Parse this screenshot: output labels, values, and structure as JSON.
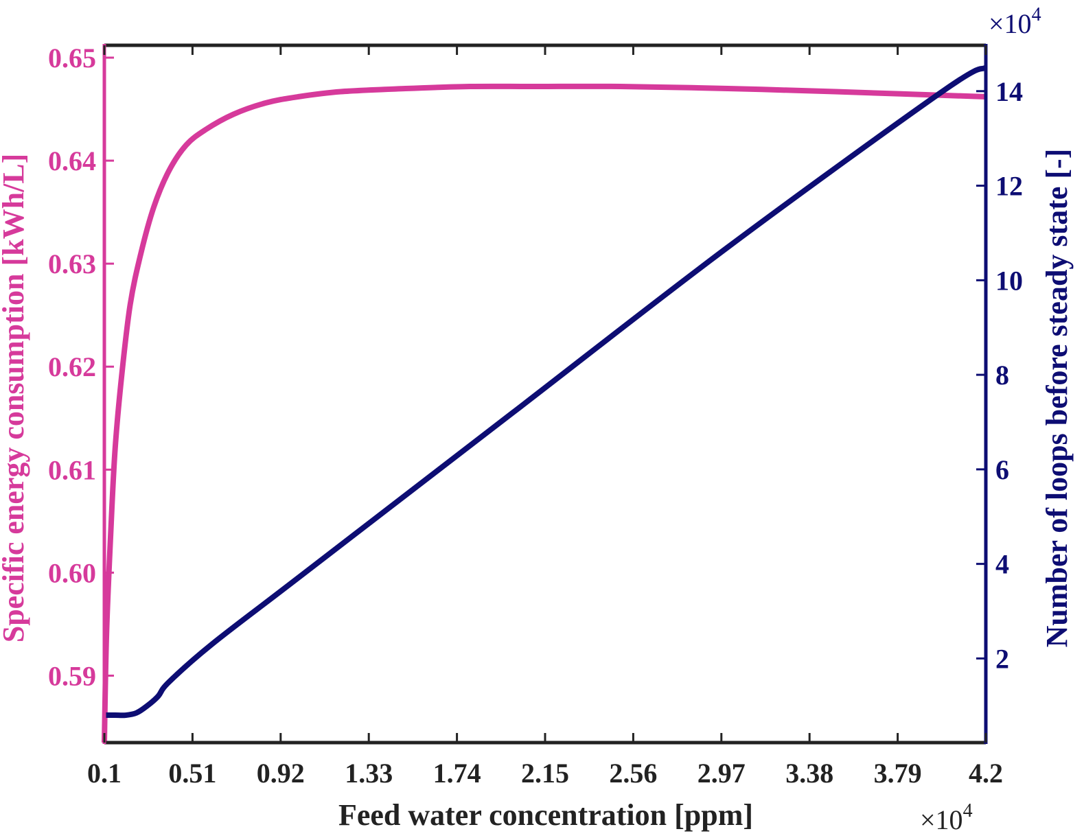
{
  "chart_data": {
    "type": "line",
    "xlabel": "Feed water concentration [ppm]",
    "x_multiplier": "×10",
    "x_exponent": "4",
    "xlim": [
      0.1,
      4.2
    ],
    "xticks": [
      "0.1",
      "0.51",
      "0.92",
      "1.33",
      "1.74",
      "2.15",
      "2.56",
      "2.97",
      "3.38",
      "3.79",
      "4.2"
    ],
    "y_left": {
      "label": "Specific energy consumption [kWh/L]",
      "lim": [
        0.5835,
        0.6512
      ],
      "ticks": [
        "0.59",
        "0.60",
        "0.61",
        "0.62",
        "0.63",
        "0.64",
        "0.65"
      ],
      "color": "#d63a9b"
    },
    "y_right": {
      "label": "Number of loops before steady state [-]",
      "multiplier": "×10",
      "exponent": "4",
      "lim": [
        0.22,
        14.97
      ],
      "ticks": [
        "2",
        "4",
        "6",
        "8",
        "10",
        "12",
        "14"
      ],
      "color": "#0d0d73"
    },
    "series": [
      {
        "axis": "left",
        "color": "#d63a9b",
        "x": [
          0.1,
          0.11,
          0.13,
          0.15,
          0.18,
          0.22,
          0.27,
          0.33,
          0.4,
          0.48,
          0.57,
          0.7,
          0.85,
          1.0,
          1.2,
          1.5,
          1.8,
          2.1,
          2.5,
          3.0,
          3.5,
          4.2
        ],
        "y": [
          0.5835,
          0.594,
          0.604,
          0.612,
          0.619,
          0.626,
          0.631,
          0.6355,
          0.639,
          0.6415,
          0.643,
          0.6445,
          0.6456,
          0.6462,
          0.6467,
          0.647,
          0.6472,
          0.6472,
          0.6472,
          0.647,
          0.6467,
          0.6462
        ]
      },
      {
        "axis": "right",
        "color": "#0d0d73",
        "x": [
          0.1,
          0.15,
          0.2,
          0.25,
          0.3,
          0.35,
          0.4,
          0.6,
          1.0,
          2.0,
          3.0,
          4.0,
          4.2
        ],
        "y": [
          0.8,
          0.8,
          0.8,
          0.85,
          1.0,
          1.2,
          1.5,
          2.3,
          3.7,
          7.2,
          10.7,
          14.0,
          14.5
        ]
      }
    ]
  }
}
